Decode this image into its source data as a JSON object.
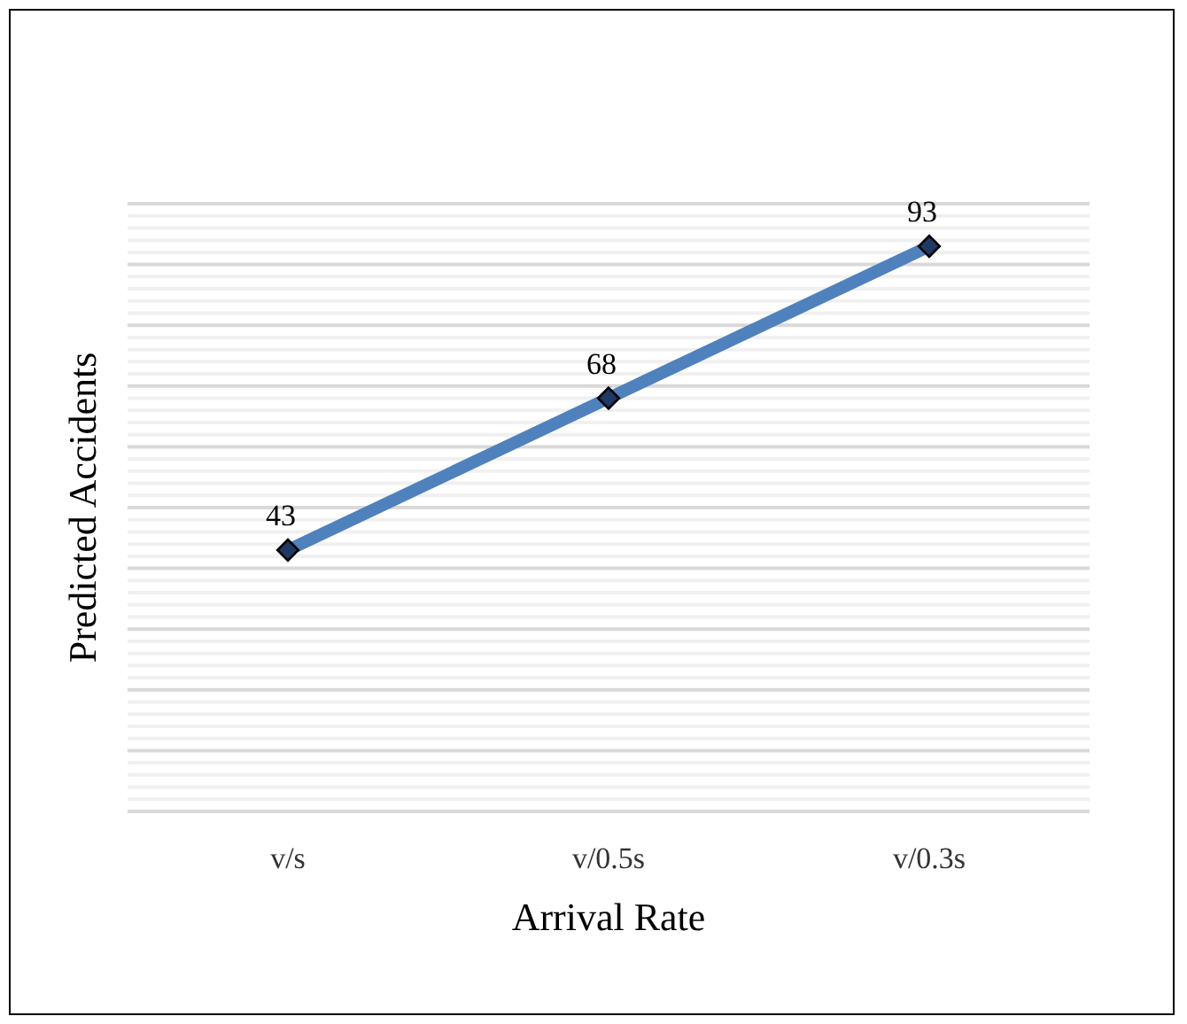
{
  "chart_data": {
    "type": "line",
    "xlabel": "Arrival Rate",
    "ylabel": "Predicted Accidents",
    "categories": [
      "v/s",
      "v/0.5s",
      "v/0.3s"
    ],
    "series": [
      {
        "color": "#4f81bd",
        "values": [
          43,
          68,
          93
        ]
      }
    ],
    "ylim": [
      0,
      100
    ],
    "yticks": [
      {
        "value": 0,
        "label": null
      },
      {
        "value": 10,
        "label": null
      },
      {
        "value": 20,
        "label": null
      },
      {
        "value": 30,
        "label": null
      },
      {
        "value": 40,
        "label": null
      },
      {
        "value": 50,
        "label": null
      },
      {
        "value": 60,
        "label": null
      },
      {
        "value": 70,
        "label": null
      },
      {
        "value": 80,
        "label": null
      },
      {
        "value": 90,
        "label": null
      },
      {
        "value": 100,
        "label": null
      }
    ],
    "tick_labels": "x",
    "grid": "y",
    "data_labels": true,
    "marker": "diamond",
    "line_style": "solid"
  }
}
